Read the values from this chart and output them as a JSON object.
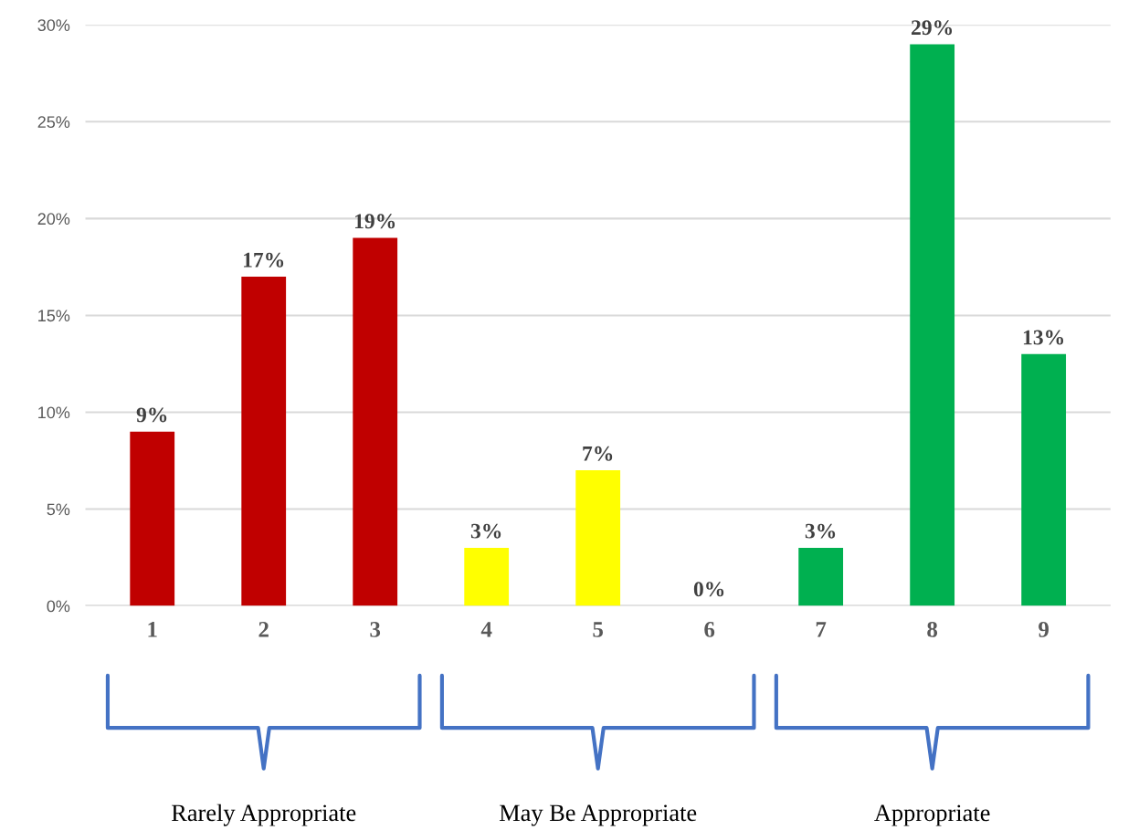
{
  "chart_data": {
    "type": "bar",
    "categories": [
      "1",
      "2",
      "3",
      "4",
      "5",
      "6",
      "7",
      "8",
      "9"
    ],
    "values": [
      9,
      17,
      19,
      3,
      7,
      0,
      3,
      29,
      13
    ],
    "colors": [
      "#c00000",
      "#c00000",
      "#c00000",
      "#ffff00",
      "#ffff00",
      "#ffff00",
      "#00b050",
      "#00b050",
      "#00b050"
    ],
    "ylim": [
      0,
      30
    ],
    "yticks": [
      {
        "value": 0,
        "label": "0%"
      },
      {
        "value": 5,
        "label": "5%"
      },
      {
        "value": 10,
        "label": "10%"
      },
      {
        "value": 15,
        "label": "15%"
      },
      {
        "value": 20,
        "label": "20%"
      },
      {
        "value": 25,
        "label": "25%"
      },
      {
        "value": 30,
        "label": "30%"
      }
    ],
    "value_labels": [
      "9%",
      "17%",
      "19%",
      "3%",
      "7%",
      "0%",
      "3%",
      "29%",
      "13%"
    ],
    "grid": "y",
    "annotations": [
      "Rarely Appropriate",
      "May Be Appropriate",
      "Appropriate"
    ]
  }
}
